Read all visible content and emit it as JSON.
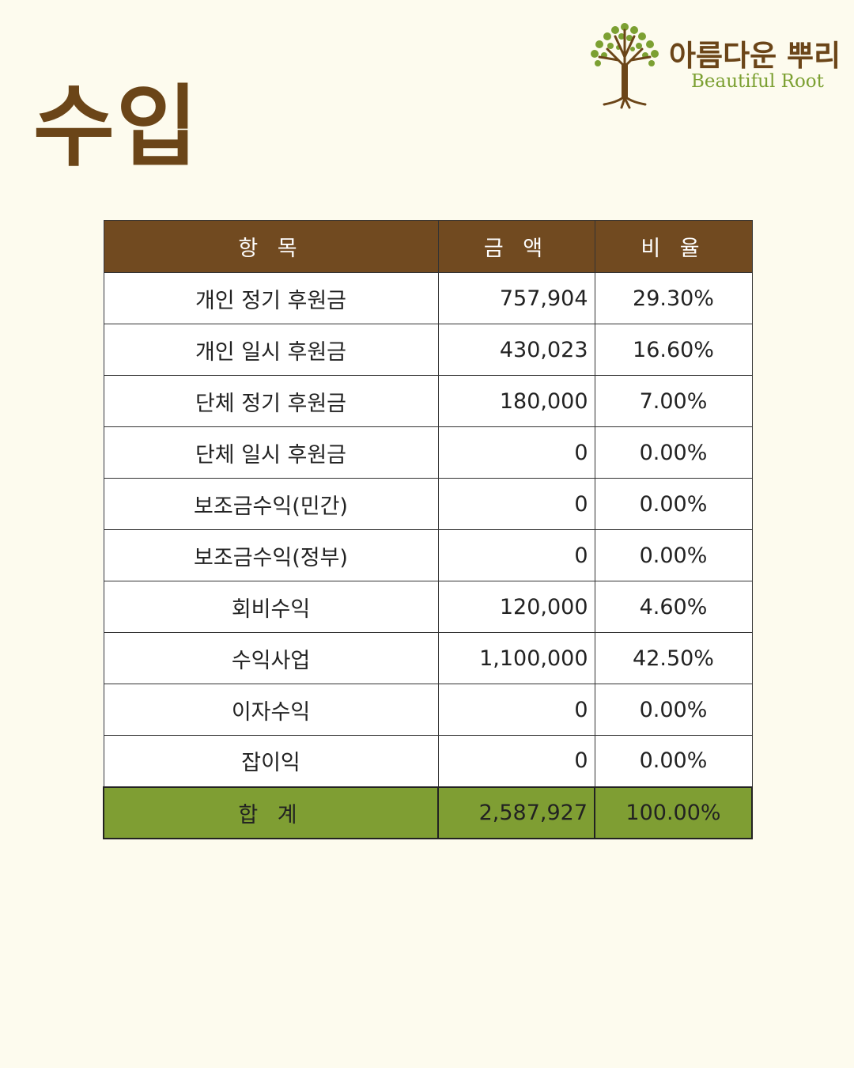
{
  "page": {
    "title": "수입"
  },
  "logo": {
    "name_ko": "아름다운 뿌리",
    "name_en": "Beautiful Root"
  },
  "table": {
    "headers": {
      "item": "항 목",
      "amount": "금 액",
      "ratio": "비 율"
    },
    "rows": [
      {
        "item": "개인 정기 후원금",
        "amount": "757,904",
        "ratio": "29.30%"
      },
      {
        "item": "개인 일시 후원금",
        "amount": "430,023",
        "ratio": "16.60%"
      },
      {
        "item": "단체 정기 후원금",
        "amount": "180,000",
        "ratio": "7.00%"
      },
      {
        "item": "단체 일시 후원금",
        "amount": "0",
        "ratio": "0.00%"
      },
      {
        "item": "보조금수익(민간)",
        "amount": "0",
        "ratio": "0.00%"
      },
      {
        "item": "보조금수익(정부)",
        "amount": "0",
        "ratio": "0.00%"
      },
      {
        "item": "회비수익",
        "amount": "120,000",
        "ratio": "4.60%"
      },
      {
        "item": "수익사업",
        "amount": "1,100,000",
        "ratio": "42.50%"
      },
      {
        "item": "이자수익",
        "amount": "0",
        "ratio": "0.00%"
      },
      {
        "item": "잡이익",
        "amount": "0",
        "ratio": "0.00%"
      }
    ],
    "total": {
      "item": "합 계",
      "amount": "2,587,927",
      "ratio": "100.00%"
    }
  },
  "colors": {
    "background": "#fdfbee",
    "brown": "#714a20",
    "green": "#7f9e33",
    "logo_green": "#7ca032"
  }
}
